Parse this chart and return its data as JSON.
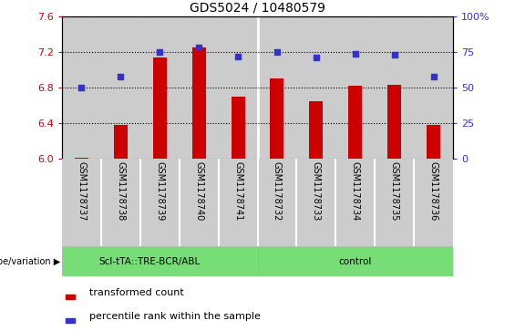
{
  "title": "GDS5024 / 10480579",
  "categories": [
    "GSM1178737",
    "GSM1178738",
    "GSM1178739",
    "GSM1178740",
    "GSM1178741",
    "GSM1178732",
    "GSM1178733",
    "GSM1178734",
    "GSM1178735",
    "GSM1178736"
  ],
  "bar_values": [
    6.01,
    6.38,
    7.14,
    7.25,
    6.7,
    6.9,
    6.65,
    6.82,
    6.83,
    6.38
  ],
  "dot_values_pct": [
    50,
    58,
    75,
    78,
    72,
    75,
    71,
    74,
    73,
    58
  ],
  "ylim_left": [
    6.0,
    7.6
  ],
  "ylim_right": [
    0,
    100
  ],
  "yticks_left": [
    6.0,
    6.4,
    6.8,
    7.2,
    7.6
  ],
  "yticks_right": [
    0,
    25,
    50,
    75,
    100
  ],
  "bar_color": "#cc0000",
  "dot_color": "#3333cc",
  "group1_label": "Scl-tTA::TRE-BCR/ABL",
  "group2_label": "control",
  "group_bg_color": "#77dd77",
  "cell_bg_color": "#cccccc",
  "xlabel_label": "genotype/variation",
  "legend_bar_label": "transformed count",
  "legend_dot_label": "percentile rank within the sample",
  "bar_bottom": 6.0,
  "title_fontsize": 10,
  "tick_fontsize": 8,
  "bar_width": 0.35,
  "group1_count": 5,
  "group2_count": 5
}
